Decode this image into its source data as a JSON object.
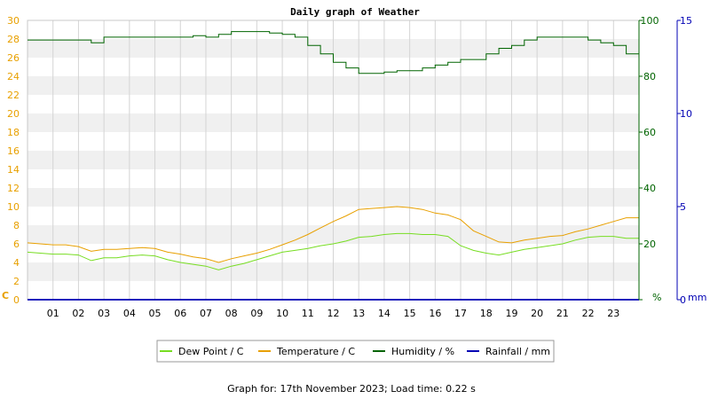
{
  "chart_data": {
    "type": "line",
    "title": "Daily graph of Weather",
    "footer": "Graph for: 17th November 2023; Load time: 0.22 s",
    "x_ticks": [
      "01",
      "02",
      "03",
      "04",
      "05",
      "06",
      "07",
      "08",
      "09",
      "10",
      "11",
      "12",
      "13",
      "14",
      "15",
      "16",
      "17",
      "18",
      "19",
      "20",
      "21",
      "22",
      "23"
    ],
    "xlim": [
      0,
      24
    ],
    "grid": true,
    "legend_position": "bottom-center",
    "axes": {
      "temp": {
        "unit_label": "C",
        "ticks": [
          0,
          2,
          4,
          6,
          8,
          10,
          12,
          14,
          16,
          18,
          20,
          22,
          24,
          26,
          28,
          30
        ],
        "ylim": [
          0,
          30
        ],
        "color": "#e8a000"
      },
      "humidity": {
        "unit_label": "%",
        "ticks": [
          0,
          20,
          40,
          60,
          80,
          100
        ],
        "ylim": [
          0,
          100
        ],
        "color": "#006400"
      },
      "rain": {
        "unit_label": "mm",
        "ticks": [
          0,
          5,
          10,
          15
        ],
        "ylim": [
          0,
          15
        ],
        "color": "#0000b4"
      }
    },
    "series": [
      {
        "name": "Dew Point / C",
        "axis": "temp",
        "color": "#77dd22",
        "x": [
          0,
          1,
          1.5,
          2,
          2.5,
          3,
          3.5,
          4,
          4.5,
          5,
          5.5,
          6,
          6.5,
          7,
          7.5,
          8,
          8.5,
          9,
          9.5,
          10,
          10.5,
          11,
          11.5,
          12,
          12.5,
          13,
          13.5,
          14,
          14.5,
          15,
          15.5,
          16,
          16.5,
          17,
          17.5,
          18,
          18.5,
          19,
          19.5,
          20,
          20.5,
          21,
          21.5,
          22,
          22.5,
          23,
          23.5,
          24
        ],
        "values": [
          5.1,
          4.9,
          4.9,
          4.8,
          4.2,
          4.5,
          4.5,
          4.7,
          4.8,
          4.7,
          4.3,
          4.0,
          3.8,
          3.6,
          3.2,
          3.6,
          3.9,
          4.3,
          4.7,
          5.1,
          5.3,
          5.5,
          5.8,
          6.0,
          6.3,
          6.7,
          6.8,
          7.0,
          7.1,
          7.1,
          7.0,
          7.0,
          6.8,
          5.8,
          5.3,
          5.0,
          4.8,
          5.1,
          5.4,
          5.6,
          5.8,
          6.0,
          6.4,
          6.7,
          6.8,
          6.8,
          6.6,
          6.6
        ]
      },
      {
        "name": "Temperature / C",
        "axis": "temp",
        "color": "#e8a000",
        "x": [
          0,
          1,
          1.5,
          2,
          2.5,
          3,
          3.5,
          4,
          4.5,
          5,
          5.5,
          6,
          6.5,
          7,
          7.5,
          8,
          8.5,
          9,
          9.5,
          10,
          10.5,
          11,
          11.5,
          12,
          12.5,
          13,
          13.5,
          14,
          14.5,
          15,
          15.5,
          16,
          16.5,
          17,
          17.5,
          18,
          18.5,
          19,
          19.5,
          20,
          20.5,
          21,
          21.5,
          22,
          22.5,
          23,
          23.5,
          24
        ],
        "values": [
          6.1,
          5.9,
          5.9,
          5.7,
          5.2,
          5.4,
          5.4,
          5.5,
          5.6,
          5.5,
          5.1,
          4.9,
          4.6,
          4.4,
          4.0,
          4.4,
          4.7,
          5.0,
          5.4,
          5.9,
          6.4,
          7.0,
          7.7,
          8.4,
          9.0,
          9.7,
          9.8,
          9.9,
          10.0,
          9.9,
          9.7,
          9.3,
          9.1,
          8.6,
          7.4,
          6.8,
          6.2,
          6.1,
          6.4,
          6.6,
          6.8,
          6.9,
          7.3,
          7.6,
          8.0,
          8.4,
          8.8,
          8.8
        ]
      },
      {
        "name": "Humidity / %",
        "axis": "humidity",
        "color": "#006400",
        "x": [
          0,
          2,
          2.5,
          3,
          6,
          6.5,
          7,
          7.5,
          8,
          8.5,
          9,
          9.5,
          10,
          10.5,
          11,
          11.5,
          12,
          12.5,
          13,
          13.5,
          14,
          14.5,
          15,
          15.5,
          16,
          16.5,
          17,
          17.5,
          18,
          18.5,
          19,
          19.5,
          20,
          20.5,
          21,
          21.5,
          22,
          22.5,
          23,
          23.5,
          24
        ],
        "values": [
          93,
          93,
          92,
          94,
          94,
          94.5,
          94,
          95,
          96,
          96,
          96,
          95.5,
          95,
          94,
          91,
          88,
          85,
          83,
          81,
          81,
          81.5,
          82,
          82,
          83,
          84,
          85,
          86,
          86,
          88,
          90,
          91,
          93,
          94,
          94,
          94,
          94,
          93,
          92,
          91,
          88,
          86
        ]
      },
      {
        "name": "Rainfall / mm",
        "axis": "rain",
        "color": "#0000b4",
        "x": [
          0,
          24
        ],
        "values": [
          0,
          0
        ]
      }
    ]
  }
}
